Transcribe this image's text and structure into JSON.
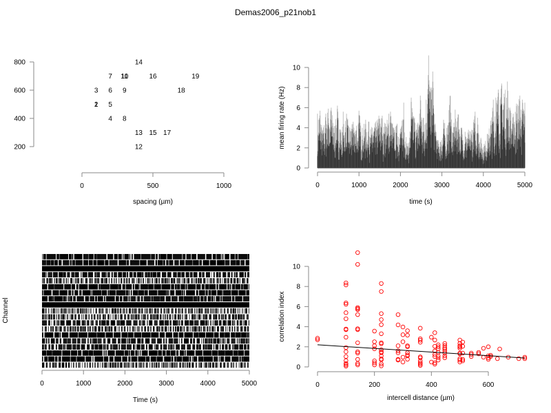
{
  "title": "Demas2006_p21nob1",
  "chart_data": [
    {
      "id": "electrode-layout",
      "type": "scatter",
      "title": "",
      "xlabel": "spacing (µm)",
      "ylabel": "",
      "xlim": [
        0,
        1000
      ],
      "ylim": [
        200,
        800
      ],
      "xticks": [
        0,
        500,
        1000
      ],
      "yticks": [
        200,
        400,
        600,
        800
      ],
      "marker": "text-labels",
      "points": [
        {
          "label": "1",
          "x": 100,
          "y": 500
        },
        {
          "label": "2",
          "x": 100,
          "y": 500
        },
        {
          "label": "3",
          "x": 100,
          "y": 600
        },
        {
          "label": "4",
          "x": 200,
          "y": 400
        },
        {
          "label": "5",
          "x": 200,
          "y": 500
        },
        {
          "label": "6",
          "x": 200,
          "y": 600
        },
        {
          "label": "7",
          "x": 200,
          "y": 700
        },
        {
          "label": "8",
          "x": 300,
          "y": 400
        },
        {
          "label": "9",
          "x": 300,
          "y": 600
        },
        {
          "label": "10",
          "x": 300,
          "y": 700
        },
        {
          "label": "11",
          "x": 300,
          "y": 700
        },
        {
          "label": "12",
          "x": 400,
          "y": 200
        },
        {
          "label": "13",
          "x": 400,
          "y": 300
        },
        {
          "label": "14",
          "x": 400,
          "y": 800
        },
        {
          "label": "15",
          "x": 500,
          "y": 300
        },
        {
          "label": "16",
          "x": 500,
          "y": 700
        },
        {
          "label": "17",
          "x": 600,
          "y": 300
        },
        {
          "label": "18",
          "x": 700,
          "y": 600
        },
        {
          "label": "19",
          "x": 800,
          "y": 700
        }
      ]
    },
    {
      "id": "mean-firing-rate",
      "type": "line",
      "title": "",
      "xlabel": "time (s)",
      "ylabel": "mean firing rate (Hz)",
      "xlim": [
        0,
        5000
      ],
      "ylim": [
        0,
        10
      ],
      "xticks": [
        0,
        1000,
        2000,
        3000,
        4000,
        5000
      ],
      "yticks": [
        0,
        2,
        4,
        6,
        8,
        10
      ],
      "note": "19 overlaid semi-transparent channel traces; peak envelope sampled",
      "envelope_x": [
        0,
        60,
        120,
        200,
        260,
        330,
        420,
        480,
        560,
        620,
        700,
        780,
        860,
        940,
        1000,
        1080,
        1160,
        1240,
        1320,
        1400,
        1480,
        1560,
        1640,
        1720,
        1760,
        1840,
        1920,
        2000,
        2080,
        2160,
        2220,
        2260,
        2340,
        2420,
        2480,
        2560,
        2620,
        2680,
        2720,
        2780,
        2840,
        2900,
        2960,
        3040,
        3120,
        3200,
        3260,
        3320,
        3400,
        3480,
        3560,
        3640,
        3720,
        3800,
        3860,
        3940,
        4020,
        4100,
        4180,
        4240,
        4300,
        4360,
        4440,
        4500,
        4580,
        4640,
        4720,
        4800,
        4880,
        4940,
        5000
      ],
      "envelope_y": [
        5.4,
        5.7,
        3.8,
        5.4,
        5.9,
        6.0,
        4.2,
        6.2,
        3.8,
        5.6,
        5.4,
        4.0,
        4.6,
        4.2,
        5.7,
        4.0,
        4.8,
        4.6,
        4.0,
        4.6,
        5.2,
        5.2,
        4.4,
        5.4,
        5.6,
        4.0,
        4.4,
        3.9,
        6.5,
        2.2,
        3.0,
        7.0,
        5.0,
        4.5,
        7.2,
        5.0,
        6.8,
        11.2,
        7.6,
        9.6,
        4.4,
        2.8,
        2.6,
        4.8,
        4.0,
        7.2,
        3.5,
        5.8,
        5.3,
        4.0,
        3.6,
        3.8,
        3.8,
        5.6,
        5.0,
        3.0,
        2.4,
        3.4,
        4.7,
        6.8,
        7.0,
        7.8,
        8.4,
        7.4,
        8.6,
        6.0,
        5.4,
        6.4,
        7.2,
        6.8,
        6.5
      ]
    },
    {
      "id": "spike-raster",
      "type": "heatmap",
      "title": "",
      "xlabel": "Time (s)",
      "ylabel": "Channel",
      "xlim": [
        0,
        5000
      ],
      "xticks": [
        0,
        1000,
        2000,
        3000,
        4000,
        5000
      ],
      "channels": 19,
      "row_activity": [
        0.85,
        0.85,
        1.0,
        0.78,
        0.55,
        0.92,
        0.92,
        0.82,
        1.0,
        0.45,
        0.6,
        0.7,
        0.6,
        0.95,
        0.7,
        0.78,
        0.95,
        0.95,
        0.4
      ]
    },
    {
      "id": "correlation-vs-distance",
      "type": "scatter",
      "title": "",
      "xlabel": "intercell distance (µm)",
      "ylabel": "correlation index",
      "xlim": [
        0,
        728
      ],
      "ylim": [
        0,
        11.4
      ],
      "xticks": [
        0,
        200,
        400,
        600
      ],
      "yticks": [
        0,
        2,
        4,
        6,
        8,
        10
      ],
      "marker_color": "#ff0000",
      "fit_line": {
        "x": [
          0,
          728
        ],
        "y": [
          2.2,
          0.88
        ]
      },
      "points": [
        [
          0,
          2.85
        ],
        [
          0,
          2.7
        ],
        [
          100,
          8.36
        ],
        [
          100,
          8.15
        ],
        [
          100,
          6.37
        ],
        [
          100,
          6.23
        ],
        [
          100,
          5.39
        ],
        [
          100,
          4.79
        ],
        [
          100,
          3.77
        ],
        [
          100,
          3.7
        ],
        [
          100,
          2.95
        ],
        [
          100,
          1.92
        ],
        [
          100,
          1.51
        ],
        [
          100,
          1.03
        ],
        [
          100,
          0.62
        ],
        [
          100,
          0.34
        ],
        [
          100,
          0.2
        ],
        [
          100,
          0.07
        ],
        [
          141,
          11.37
        ],
        [
          141,
          10.2
        ],
        [
          141,
          5.9
        ],
        [
          141,
          5.8
        ],
        [
          141,
          5.7
        ],
        [
          141,
          5.2
        ],
        [
          141,
          3.8
        ],
        [
          141,
          3.7
        ],
        [
          141,
          2.4
        ],
        [
          141,
          1.5
        ],
        [
          141,
          1.37
        ],
        [
          141,
          0.75
        ],
        [
          141,
          0.34
        ],
        [
          141,
          0.2
        ],
        [
          200,
          3.56
        ],
        [
          200,
          2.5
        ],
        [
          200,
          2.1
        ],
        [
          200,
          1.8
        ],
        [
          200,
          0.6
        ],
        [
          200,
          0.4
        ],
        [
          200,
          0.2
        ],
        [
          224,
          8.3
        ],
        [
          224,
          7.5
        ],
        [
          224,
          5.3
        ],
        [
          224,
          4.7
        ],
        [
          224,
          4.2
        ],
        [
          224,
          3.3
        ],
        [
          224,
          2.4
        ],
        [
          224,
          2.3
        ],
        [
          224,
          1.7
        ],
        [
          224,
          1.5
        ],
        [
          224,
          1.4
        ],
        [
          224,
          1.1
        ],
        [
          224,
          0.8
        ],
        [
          224,
          0.7
        ],
        [
          224,
          0.3
        ],
        [
          224,
          0.1
        ],
        [
          283,
          5.2
        ],
        [
          283,
          4.18
        ],
        [
          283,
          2.1
        ],
        [
          283,
          1.6
        ],
        [
          283,
          1.4
        ],
        [
          283,
          0.75
        ],
        [
          283,
          0.68
        ],
        [
          300,
          3.97
        ],
        [
          300,
          3.2
        ],
        [
          300,
          2.5
        ],
        [
          300,
          0.96
        ],
        [
          300,
          0.48
        ],
        [
          316,
          3.6
        ],
        [
          316,
          3.15
        ],
        [
          316,
          2.1
        ],
        [
          316,
          2.0
        ],
        [
          316,
          1.4
        ],
        [
          316,
          1.2
        ],
        [
          316,
          1.1
        ],
        [
          316,
          0.76
        ],
        [
          361,
          3.85
        ],
        [
          361,
          2.8
        ],
        [
          361,
          2.65
        ],
        [
          361,
          2.45
        ],
        [
          361,
          1.0
        ],
        [
          361,
          0.9
        ],
        [
          361,
          0.6
        ],
        [
          361,
          0.4
        ],
        [
          361,
          0.27
        ],
        [
          361,
          0.14
        ],
        [
          400,
          2.95
        ],
        [
          400,
          0.48
        ],
        [
          412,
          3.4
        ],
        [
          412,
          2.67
        ],
        [
          412,
          2.05
        ],
        [
          412,
          1.58
        ],
        [
          412,
          1.23
        ],
        [
          412,
          1.03
        ],
        [
          412,
          0.41
        ],
        [
          412,
          0.27
        ],
        [
          424,
          2.2
        ],
        [
          424,
          2.0
        ],
        [
          424,
          1.8
        ],
        [
          424,
          1.44
        ],
        [
          424,
          1.1
        ],
        [
          424,
          0.9
        ],
        [
          424,
          0.68
        ],
        [
          447,
          2.33
        ],
        [
          447,
          2.12
        ],
        [
          447,
          1.92
        ],
        [
          447,
          1.78
        ],
        [
          447,
          1.58
        ],
        [
          447,
          1.37
        ],
        [
          447,
          1.1
        ],
        [
          447,
          0.9
        ],
        [
          500,
          2.67
        ],
        [
          500,
          2.33
        ],
        [
          500,
          2.1
        ],
        [
          500,
          2.0
        ],
        [
          500,
          1.85
        ],
        [
          500,
          1.37
        ],
        [
          500,
          1.3
        ],
        [
          500,
          0.82
        ],
        [
          500,
          0.68
        ],
        [
          500,
          0.48
        ],
        [
          510,
          2.47
        ],
        [
          510,
          2.05
        ],
        [
          510,
          1.37
        ],
        [
          510,
          0.75
        ],
        [
          510,
          0.6
        ],
        [
          540,
          1.37
        ],
        [
          540,
          1.23
        ],
        [
          540,
          1.03
        ],
        [
          566,
          1.44
        ],
        [
          566,
          1.3
        ],
        [
          583,
          1.85
        ],
        [
          583,
          0.96
        ],
        [
          600,
          2.0
        ],
        [
          600,
          1.1
        ],
        [
          600,
          0.9
        ],
        [
          600,
          0.75
        ],
        [
          608,
          1.16
        ],
        [
          608,
          1.03
        ],
        [
          632,
          0.82
        ],
        [
          640,
          1.78
        ],
        [
          670,
          0.96
        ],
        [
          707,
          0.82
        ],
        [
          728,
          0.96
        ],
        [
          728,
          0.82
        ]
      ]
    }
  ]
}
